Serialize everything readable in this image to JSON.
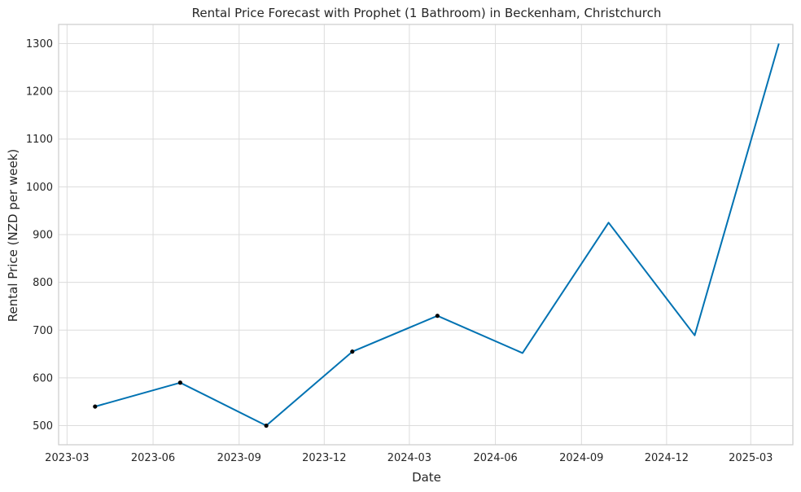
{
  "chart_data": {
    "type": "line",
    "title": "Rental Price Forecast with Prophet (1 Bathroom) in Beckenham, Christchurch",
    "xlabel": "Date",
    "ylabel": "Rental Price (NZD per week)",
    "x_ticks": [
      "2023-03",
      "2023-06",
      "2023-09",
      "2023-12",
      "2024-03",
      "2024-06",
      "2024-09",
      "2024-12",
      "2025-03"
    ],
    "y_ticks": [
      500,
      600,
      700,
      800,
      900,
      1000,
      1100,
      1200,
      1300
    ],
    "xlim": [
      "2023-02-20",
      "2025-04-15"
    ],
    "ylim": [
      460,
      1340
    ],
    "grid": true,
    "colors": {
      "line": "#0072B2",
      "observed": "#000000",
      "grid": "#dcdcdc",
      "frame": "#cccccc"
    },
    "series": [
      {
        "points": [
          {
            "x": "2023-03-31",
            "y": 540
          },
          {
            "x": "2023-06-30",
            "y": 590
          },
          {
            "x": "2023-09-30",
            "y": 500
          },
          {
            "x": "2023-12-31",
            "y": 655
          },
          {
            "x": "2024-03-31",
            "y": 730
          },
          {
            "x": "2024-06-30",
            "y": 652
          },
          {
            "x": "2024-09-30",
            "y": 925
          },
          {
            "x": "2024-12-31",
            "y": 689
          },
          {
            "x": "2025-03-31",
            "y": 1300
          }
        ]
      }
    ],
    "observed": [
      {
        "x": "2023-03-31",
        "y": 540
      },
      {
        "x": "2023-06-30",
        "y": 590
      },
      {
        "x": "2023-09-30",
        "y": 500
      },
      {
        "x": "2023-12-31",
        "y": 655
      },
      {
        "x": "2024-03-31",
        "y": 730
      }
    ]
  }
}
